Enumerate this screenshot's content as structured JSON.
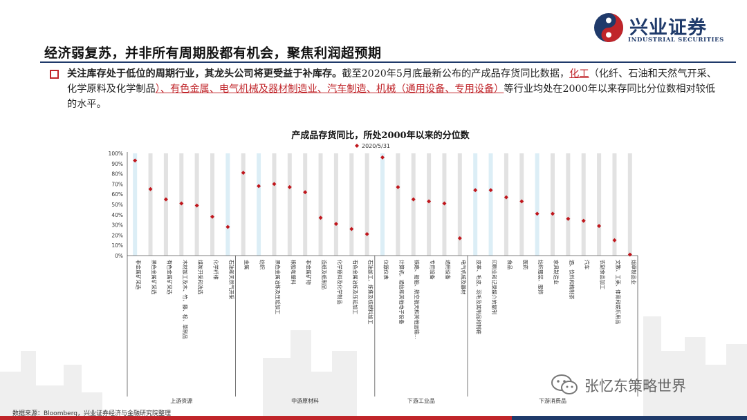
{
  "header": {
    "title": "经济弱复苏，并非所有周期股都有机会，聚焦利润超预期",
    "logo_text": "兴业证券",
    "logo_sub": "INDUSTRIAL SECURITIES"
  },
  "bullet": {
    "bold": "关注库存处于低位的周期行业，其龙头公司将更受益于补库存。",
    "text1": "截至2020年5月底最新公布的产成品存货同比数据，",
    "hl1": "化工",
    "text2": "（化纤、石油和天然气开采、化学原料及化学制品",
    "hl2": "）、有色金属、电气机械及器材制造业、汽车制造、机械（通用设备、专用设备）",
    "text3": "等行业均处在2000年以来存同比分位数相对较低的水平。"
  },
  "source": "数据来源：Bloomberg，兴业证券经济与金融研究院整理",
  "watermark": "张忆东策略世界",
  "colors": {
    "accent_red": "#c0252a",
    "brand_blue": "#1f3a6a",
    "band_blue": "#dceef6",
    "band_gray": "#e2e2e2",
    "marker": "#c0161c"
  },
  "chart_data": {
    "type": "scatter",
    "title": "产成品存货同比，所处2000年以来的分位数",
    "legend": "2020/5/31",
    "legend_position": "top",
    "ylim": [
      0,
      100
    ],
    "yticks": [
      "0%",
      "10%",
      "20%",
      "30%",
      "40%",
      "50%",
      "60%",
      "70%",
      "80%",
      "90%",
      "100%"
    ],
    "categories": [
      "非金属矿采选",
      "黑色金属矿采选",
      "有色金属矿采选",
      "木材加工及木、竹、藤、棕、草制品",
      "煤炭开采和洗选",
      "化学纤维",
      "石油和天然气开采",
      "金属",
      "纺织",
      "黑色金属冶炼及压延加工",
      "橡胶和塑料",
      "非金属矿物",
      "造纸及纸制品",
      "化学原料及化学制品",
      "有色金属冶炼及压延加工",
      "石油加工、炼焦及核燃料加工",
      "仪器仪表",
      "计算机、通信和其他电子设备",
      "铁路、船舶、航空航天和其他运输…",
      "专用设备",
      "通用设备",
      "电气机械及器材",
      "皮革、毛皮、羽毛及其制品和制鞋",
      "印刷业和记录媒介的复制",
      "食品",
      "医药",
      "纺织服装、服饰",
      "家具制造业",
      "酒、饮料和精制茶",
      "汽车",
      "农副食品加工",
      "文教、工美、体育和娱乐用品",
      "烟草制品业"
    ],
    "values": [
      93,
      65,
      55,
      51,
      49,
      38,
      28,
      81,
      68,
      70,
      67,
      62,
      37,
      31,
      26,
      21,
      96,
      67,
      55,
      53,
      51,
      17,
      64,
      64,
      57,
      53,
      41,
      41,
      36,
      34,
      29,
      15,
      1
    ],
    "band_color_keys": [
      "blue",
      "gray",
      "gray",
      "gray",
      "gray",
      "gray",
      "blue",
      "gray",
      "blue",
      "gray",
      "gray",
      "gray",
      "gray",
      "gray",
      "gray",
      "gray",
      "blue",
      "gray",
      "gray",
      "gray",
      "gray",
      "gray",
      "blue",
      "blue",
      "gray",
      "gray",
      "blue",
      "gray",
      "gray",
      "gray",
      "gray",
      "gray",
      "gray"
    ],
    "groups": [
      {
        "label": "上游资源",
        "start": 0,
        "end": 6
      },
      {
        "label": "中游原材料",
        "start": 7,
        "end": 15
      },
      {
        "label": "下游工业品",
        "start": 16,
        "end": 21
      },
      {
        "label": "下游消费品",
        "start": 22,
        "end": 32
      }
    ]
  }
}
